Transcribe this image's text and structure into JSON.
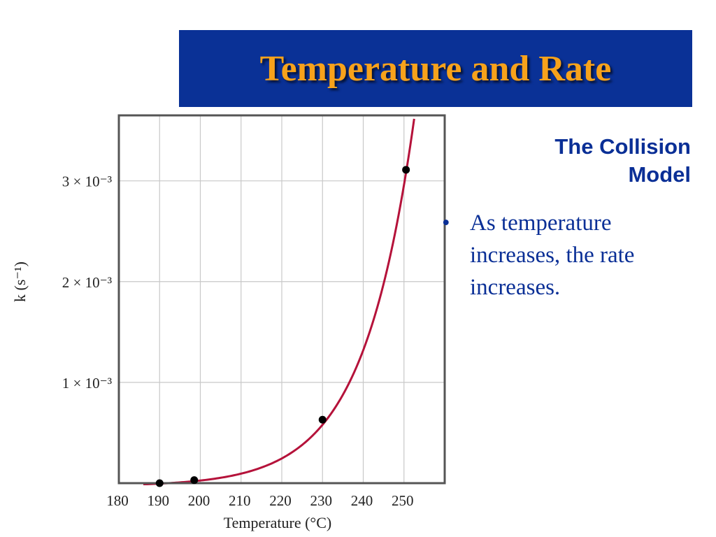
{
  "slide": {
    "title": "Temperature and Rate",
    "subtitle": "The Collision Model",
    "bullets": [
      {
        "marker": "•",
        "text": "As temperature increases, the rate increases."
      }
    ]
  },
  "colors": {
    "title_bar": "#0a3196",
    "title_text": "#f7a21b",
    "body_text": "#0a2f96",
    "curve": "#b5123a",
    "grid": "#c8c8c8",
    "frame": "#555555",
    "points": "#000000"
  },
  "chart_data": {
    "type": "scatter",
    "xlabel": "Temperature (°C)",
    "ylabel": "k (s⁻¹)",
    "xlim": [
      180,
      260
    ],
    "ylim": [
      0,
      0.00365
    ],
    "x_ticks": [
      180,
      190,
      200,
      210,
      220,
      230,
      240,
      250
    ],
    "x_tick_labels": [
      "180",
      "190",
      "200",
      "210",
      "220",
      "230",
      "240",
      "250"
    ],
    "y_ticks": [
      0.001,
      0.002,
      0.003
    ],
    "y_tick_labels": [
      "1 × 10⁻³",
      "2 × 10⁻³",
      "3 × 10⁻³"
    ],
    "grid": true,
    "points": [
      {
        "x": 190,
        "y": 0.0
      },
      {
        "x": 198.5,
        "y": 3e-05
      },
      {
        "x": 230,
        "y": 0.00063
      },
      {
        "x": 250.5,
        "y": 0.00311
      }
    ],
    "fit_curve": {
      "x_range": [
        186,
        252.5
      ],
      "model": "exponential",
      "a": 0.00311,
      "b": 0.0795,
      "x0": 250.5,
      "offset": -3e-05
    }
  }
}
